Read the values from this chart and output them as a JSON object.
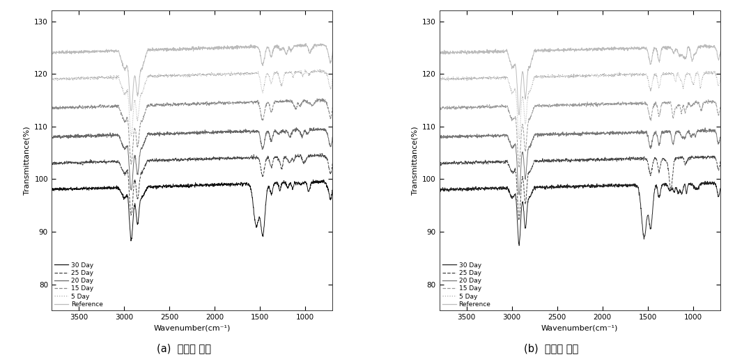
{
  "title_a": "(a)  지지층 소재",
  "title_b": "(b)  표면층 소재",
  "xlabel": "Wavenumber(cm⁻¹)",
  "ylabel": "Transmittance(%)",
  "xlim_left": 3800,
  "xlim_right": 700,
  "ylim": [
    75,
    132
  ],
  "yticks": [
    80,
    90,
    100,
    110,
    120,
    130
  ],
  "xticks": [
    1000,
    1500,
    2000,
    2500,
    3000,
    3500
  ],
  "legend_labels": [
    "30 Day",
    "25 Day",
    "20 Day",
    "15 Day",
    "5 Day",
    "Reference"
  ],
  "colors_a": [
    "#111111",
    "#444444",
    "#666666",
    "#888888",
    "#aaaaaa",
    "#bbbbbb"
  ],
  "colors_b": [
    "#222222",
    "#444444",
    "#777777",
    "#999999",
    "#aaaaaa",
    "#bbbbbb"
  ],
  "baselines": [
    98.0,
    103.0,
    108.0,
    113.5,
    119.0,
    124.0
  ],
  "background_color": "#ffffff"
}
